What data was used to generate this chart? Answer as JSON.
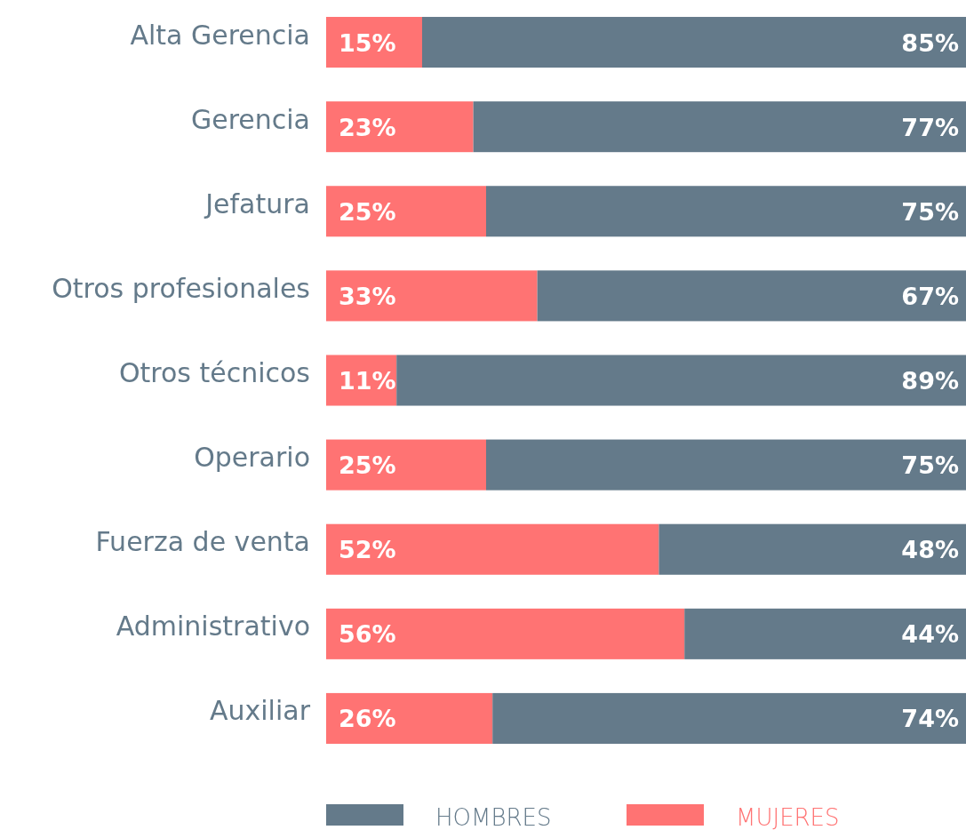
{
  "chart_data": {
    "type": "bar",
    "orientation": "horizontal",
    "stacked": true,
    "legend": "bottom",
    "xlim": [
      0,
      100
    ],
    "categories": [
      "Alta Gerencia",
      "Gerencia",
      "Jefatura",
      "Otros profesionales",
      "Otros técnicos",
      "Operario",
      "Fuerza de venta",
      "Administrativo",
      "Auxiliar"
    ],
    "series": [
      {
        "name": "MUJERES",
        "color": "#ff7373",
        "values": [
          15,
          23,
          25,
          33,
          11,
          25,
          52,
          56,
          26
        ],
        "value_labels": [
          "15%",
          "23%",
          "25%",
          "33%",
          "11%",
          "25%",
          "52%",
          "56%",
          "26%"
        ]
      },
      {
        "name": "HOMBRES",
        "color": "#647a8a",
        "values": [
          85,
          77,
          75,
          67,
          89,
          75,
          48,
          44,
          74
        ],
        "value_labels": [
          "85%",
          "77%",
          "75%",
          "67%",
          "89%",
          "75%",
          "48%",
          "44%",
          "74%"
        ]
      }
    ]
  }
}
